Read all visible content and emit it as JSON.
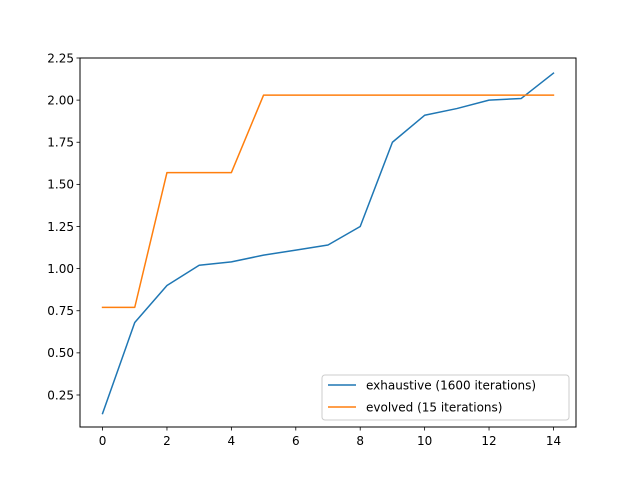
{
  "chart_data": {
    "type": "line",
    "title": "",
    "xlabel": "",
    "ylabel": "",
    "xlim": [
      -0.7,
      14.7
    ],
    "ylim": [
      0.06,
      2.25
    ],
    "xticks": [
      0,
      2,
      4,
      6,
      8,
      10,
      12,
      14
    ],
    "xtick_labels": [
      "0",
      "2",
      "4",
      "6",
      "8",
      "10",
      "12",
      "14"
    ],
    "yticks": [
      0.25,
      0.5,
      0.75,
      1.0,
      1.25,
      1.5,
      1.75,
      2.0,
      2.25
    ],
    "ytick_labels": [
      "0.25",
      "0.50",
      "0.75",
      "1.00",
      "1.25",
      "1.50",
      "1.75",
      "2.00",
      "2.25"
    ],
    "grid": false,
    "legend_position": "lower-right",
    "x": [
      0,
      1,
      2,
      3,
      4,
      5,
      6,
      7,
      8,
      9,
      10,
      11,
      12,
      13,
      14
    ],
    "series": [
      {
        "name": "exhaustive (1600 iterations)",
        "color": "#1f77b4",
        "values": [
          0.14,
          0.68,
          0.9,
          1.02,
          1.04,
          1.08,
          1.11,
          1.14,
          1.25,
          1.75,
          1.91,
          1.95,
          2.0,
          2.01,
          2.16
        ]
      },
      {
        "name": "evolved (15 iterations)",
        "color": "#ff7f0e",
        "values": [
          0.77,
          0.77,
          1.57,
          1.57,
          1.57,
          2.03,
          2.03,
          2.03,
          2.03,
          2.03,
          2.03,
          2.03,
          2.03,
          2.03,
          2.03
        ]
      }
    ]
  }
}
